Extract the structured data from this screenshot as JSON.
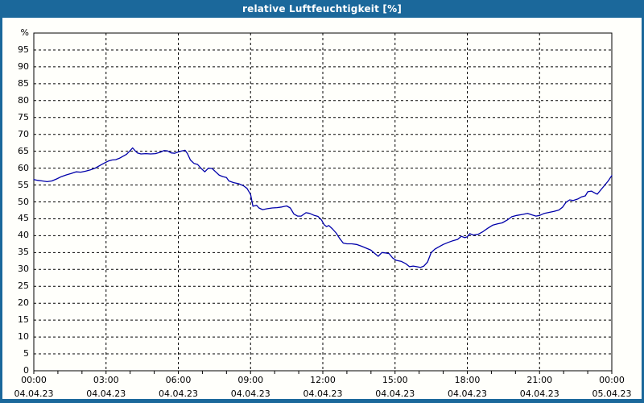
{
  "window": {
    "title": "relative Luftfeuchtigkeit [%]"
  },
  "colors": {
    "frame_blue": "#1b689b",
    "title_text": "#ffffff",
    "plot_background": "#fffffb",
    "line_blue": "#0000aa",
    "grid_black": "#000000",
    "label_text": "#000000"
  },
  "chart_data": {
    "type": "line",
    "title": "relative Luftfeuchtigkeit [%]",
    "y_unit_label": "%",
    "ylim": [
      0,
      100
    ],
    "y_ticks": [
      0,
      5,
      10,
      15,
      20,
      25,
      30,
      35,
      40,
      45,
      50,
      55,
      60,
      65,
      70,
      75,
      80,
      85,
      90,
      95
    ],
    "xlim_hours": [
      0,
      24
    ],
    "x_minor_tick_hours": 1,
    "grid": "dashed-both",
    "legend": "none",
    "x_ticks": [
      {
        "hour": 0,
        "time": "00:00",
        "date": "04.04.23"
      },
      {
        "hour": 3,
        "time": "03:00",
        "date": "04.04.23"
      },
      {
        "hour": 6,
        "time": "06:00",
        "date": "04.04.23"
      },
      {
        "hour": 9,
        "time": "09:00",
        "date": "04.04.23"
      },
      {
        "hour": 12,
        "time": "12:00",
        "date": "04.04.23"
      },
      {
        "hour": 15,
        "time": "15:00",
        "date": "04.04.23"
      },
      {
        "hour": 18,
        "time": "18:00",
        "date": "04.04.23"
      },
      {
        "hour": 21,
        "time": "21:00",
        "date": "04.04.23"
      },
      {
        "hour": 24,
        "time": "00:00",
        "date": "05.04.23"
      }
    ],
    "series": [
      {
        "name": "relative Luftfeuchtigkeit",
        "unit": "%",
        "color": "#0000aa",
        "points": [
          [
            0,
            56.6
          ],
          [
            0.15,
            56.4
          ],
          [
            0.35,
            56.2
          ],
          [
            0.55,
            56.0
          ],
          [
            0.75,
            56.2
          ],
          [
            0.95,
            56.8
          ],
          [
            1.15,
            57.5
          ],
          [
            1.35,
            58.0
          ],
          [
            1.55,
            58.4
          ],
          [
            1.75,
            58.9
          ],
          [
            1.95,
            58.8
          ],
          [
            2.15,
            59.1
          ],
          [
            2.35,
            59.5
          ],
          [
            2.55,
            60.0
          ],
          [
            2.75,
            60.8
          ],
          [
            2.95,
            61.6
          ],
          [
            3.1,
            62.1
          ],
          [
            3.25,
            62.4
          ],
          [
            3.4,
            62.5
          ],
          [
            3.55,
            62.9
          ],
          [
            3.7,
            63.5
          ],
          [
            3.85,
            64.1
          ],
          [
            4.0,
            65.2
          ],
          [
            4.1,
            66.0
          ],
          [
            4.2,
            65.2
          ],
          [
            4.3,
            64.5
          ],
          [
            4.45,
            64.2
          ],
          [
            4.65,
            64.3
          ],
          [
            4.85,
            64.2
          ],
          [
            5.05,
            64.3
          ],
          [
            5.25,
            64.7
          ],
          [
            5.4,
            65.2
          ],
          [
            5.55,
            65.1
          ],
          [
            5.7,
            64.5
          ],
          [
            5.85,
            64.4
          ],
          [
            6.0,
            64.8
          ],
          [
            6.15,
            65.1
          ],
          [
            6.28,
            65.3
          ],
          [
            6.38,
            64.3
          ],
          [
            6.5,
            62.4
          ],
          [
            6.65,
            61.4
          ],
          [
            6.8,
            61.1
          ],
          [
            6.95,
            59.9
          ],
          [
            7.1,
            58.9
          ],
          [
            7.25,
            60.0
          ],
          [
            7.4,
            59.9
          ],
          [
            7.55,
            58.9
          ],
          [
            7.7,
            57.9
          ],
          [
            7.85,
            57.5
          ],
          [
            8.0,
            57.2
          ],
          [
            8.1,
            56.2
          ],
          [
            8.3,
            55.7
          ],
          [
            8.5,
            55.4
          ],
          [
            8.7,
            54.8
          ],
          [
            8.85,
            54.0
          ],
          [
            9.0,
            52.2
          ],
          [
            9.1,
            48.7
          ],
          [
            9.25,
            49.0
          ],
          [
            9.35,
            48.2
          ],
          [
            9.5,
            47.7
          ],
          [
            9.7,
            48.0
          ],
          [
            9.9,
            48.2
          ],
          [
            10.1,
            48.3
          ],
          [
            10.3,
            48.5
          ],
          [
            10.5,
            48.8
          ],
          [
            10.65,
            48.2
          ],
          [
            10.8,
            46.4
          ],
          [
            10.95,
            45.8
          ],
          [
            11.1,
            45.8
          ],
          [
            11.3,
            46.8
          ],
          [
            11.45,
            46.6
          ],
          [
            11.65,
            46.0
          ],
          [
            11.8,
            45.7
          ],
          [
            11.95,
            44.6
          ],
          [
            12.05,
            43.3
          ],
          [
            12.15,
            42.7
          ],
          [
            12.25,
            43.0
          ],
          [
            12.4,
            42.0
          ],
          [
            12.55,
            40.8
          ],
          [
            12.7,
            39.2
          ],
          [
            12.85,
            37.8
          ],
          [
            13.0,
            37.6
          ],
          [
            13.2,
            37.6
          ],
          [
            13.4,
            37.4
          ],
          [
            13.6,
            36.9
          ],
          [
            13.8,
            36.3
          ],
          [
            14.0,
            35.7
          ],
          [
            14.15,
            34.8
          ],
          [
            14.3,
            33.9
          ],
          [
            14.45,
            35.0
          ],
          [
            14.6,
            34.9
          ],
          [
            14.75,
            34.7
          ],
          [
            14.9,
            33.4
          ],
          [
            15.05,
            32.7
          ],
          [
            15.25,
            32.4
          ],
          [
            15.45,
            31.7
          ],
          [
            15.6,
            30.8
          ],
          [
            15.75,
            31.0
          ],
          [
            15.9,
            30.8
          ],
          [
            16.05,
            30.6
          ],
          [
            16.2,
            31.0
          ],
          [
            16.35,
            32.2
          ],
          [
            16.5,
            35.0
          ],
          [
            16.65,
            36.0
          ],
          [
            16.8,
            36.6
          ],
          [
            17.0,
            37.4
          ],
          [
            17.2,
            38.0
          ],
          [
            17.4,
            38.5
          ],
          [
            17.6,
            38.9
          ],
          [
            17.75,
            39.8
          ],
          [
            17.9,
            39.4
          ],
          [
            18.0,
            39.7
          ],
          [
            18.1,
            40.6
          ],
          [
            18.25,
            40.2
          ],
          [
            18.45,
            40.4
          ],
          [
            18.65,
            41.2
          ],
          [
            18.85,
            42.2
          ],
          [
            19.05,
            43.1
          ],
          [
            19.25,
            43.5
          ],
          [
            19.45,
            43.8
          ],
          [
            19.65,
            44.6
          ],
          [
            19.85,
            45.6
          ],
          [
            20.05,
            46.0
          ],
          [
            20.3,
            46.3
          ],
          [
            20.5,
            46.6
          ],
          [
            20.7,
            46.1
          ],
          [
            20.85,
            45.8
          ],
          [
            21.0,
            46.0
          ],
          [
            21.2,
            46.6
          ],
          [
            21.4,
            46.9
          ],
          [
            21.6,
            47.2
          ],
          [
            21.8,
            47.6
          ],
          [
            21.95,
            48.4
          ],
          [
            22.1,
            49.9
          ],
          [
            22.25,
            50.6
          ],
          [
            22.4,
            50.4
          ],
          [
            22.6,
            50.9
          ],
          [
            22.75,
            51.5
          ],
          [
            22.9,
            51.8
          ],
          [
            23.0,
            53.0
          ],
          [
            23.15,
            53.2
          ],
          [
            23.3,
            52.6
          ],
          [
            23.4,
            52.3
          ],
          [
            23.55,
            53.6
          ],
          [
            23.7,
            54.9
          ],
          [
            23.85,
            56.2
          ],
          [
            24.0,
            57.8
          ]
        ]
      }
    ]
  }
}
